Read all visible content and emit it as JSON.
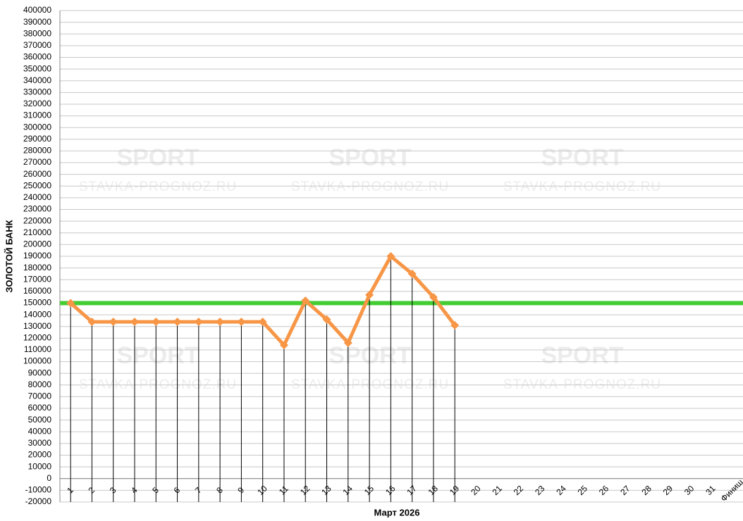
{
  "chart_data": {
    "type": "line",
    "x_label": "Март 2026",
    "y_label": "ЗОЛОТОЙ БАНК",
    "watermark_text": [
      "SPORT",
      "STAVKA-PROGNOZ.RU"
    ],
    "categories": [
      "1",
      "2",
      "3",
      "4",
      "5",
      "6",
      "7",
      "8",
      "9",
      "10",
      "11",
      "12",
      "13",
      "14",
      "15",
      "16",
      "17",
      "18",
      "19",
      "20",
      "21",
      "22",
      "23",
      "24",
      "25",
      "26",
      "27",
      "28",
      "29",
      "30",
      "31",
      "Финиш"
    ],
    "series": [
      {
        "name": null,
        "color": "#f79646",
        "values": [
          150000,
          134000,
          134000,
          134000,
          134000,
          134000,
          134000,
          134000,
          134000,
          134000,
          114000,
          152000,
          136000,
          116000,
          157000,
          190000,
          175000,
          155000,
          131000,
          null,
          null,
          null,
          null,
          null,
          null,
          null,
          null,
          null,
          null,
          null,
          null,
          null
        ]
      }
    ],
    "reference_line": {
      "value": 150000,
      "color": "#44cc33"
    },
    "ylim": [
      -20000,
      400000
    ],
    "yticks": [
      -20000,
      -10000,
      0,
      10000,
      20000,
      30000,
      40000,
      50000,
      60000,
      70000,
      80000,
      90000,
      100000,
      110000,
      120000,
      130000,
      140000,
      150000,
      160000,
      170000,
      180000,
      190000,
      200000,
      210000,
      220000,
      230000,
      240000,
      250000,
      260000,
      270000,
      280000,
      290000,
      300000,
      310000,
      320000,
      330000,
      340000,
      350000,
      360000,
      370000,
      380000,
      390000,
      400000
    ],
    "grid": true,
    "drop_lines": true
  }
}
